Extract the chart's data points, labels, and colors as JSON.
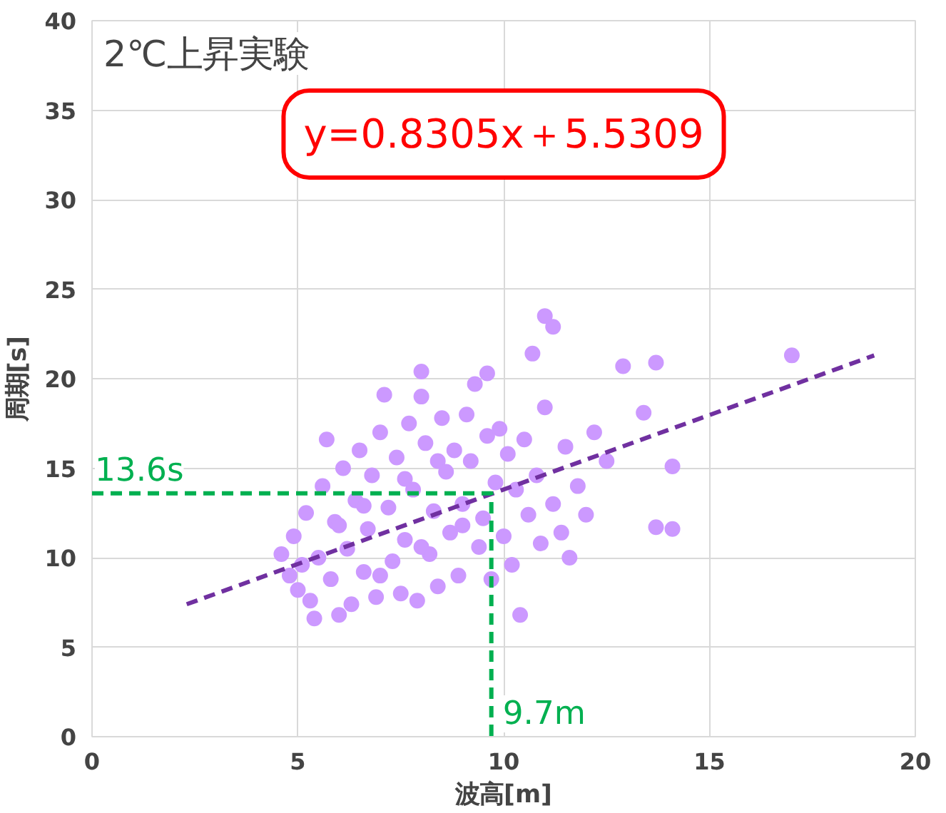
{
  "chart_data": {
    "type": "scatter",
    "title": "2℃上昇実験",
    "xlabel": "波高[m]",
    "ylabel": "周期[s]",
    "xlim": [
      0,
      20
    ],
    "xticks": [
      0,
      5,
      10,
      15,
      20
    ],
    "ylim": [
      0,
      40
    ],
    "yticks": [
      0,
      5,
      10,
      15,
      20,
      25,
      30,
      35,
      40
    ],
    "grid": true,
    "annotations": [
      "y=0.8305x＋5.5309",
      {
        "text": "13.6s",
        "x": 0,
        "y": 13.6
      },
      {
        "text": "9.7m",
        "x": 9.7,
        "y": 0
      }
    ],
    "series": [
      {
        "color": "#cc99ff",
        "marker": "circle",
        "x": [
          4.6,
          4.8,
          4.9,
          5.0,
          5.2,
          5.3,
          5.4,
          5.5,
          5.6,
          5.7,
          5.8,
          5.9,
          6.0,
          6.1,
          6.2,
          6.3,
          6.4,
          6.5,
          6.6,
          6.7,
          6.8,
          6.9,
          7.0,
          7.1,
          7.2,
          7.3,
          7.4,
          7.5,
          7.6,
          7.7,
          7.8,
          7.9,
          8.0,
          8.0,
          8.1,
          8.2,
          8.3,
          8.4,
          8.5,
          8.6,
          8.7,
          8.8,
          8.9,
          9.0,
          9.1,
          9.2,
          9.3,
          9.4,
          9.6,
          9.5,
          9.6,
          9.7,
          9.8,
          9.9,
          10.0,
          10.1,
          10.2,
          10.3,
          10.4,
          10.5,
          10.6,
          10.7,
          10.8,
          10.9,
          11.0,
          11.2,
          11.0,
          11.2,
          11.4,
          11.5,
          11.6,
          11.8,
          12.0,
          12.2,
          12.5,
          12.9,
          13.4,
          13.7,
          13.7,
          14.1,
          14.1,
          17.0,
          5.1,
          6.0,
          7.0,
          8.0,
          9.0,
          6.6,
          7.6,
          8.4
        ],
        "values": [
          10.2,
          9.0,
          11.2,
          8.2,
          12.5,
          7.6,
          6.6,
          10.0,
          14.0,
          16.6,
          8.8,
          12.0,
          6.8,
          15.0,
          10.5,
          7.4,
          13.2,
          16.0,
          9.2,
          11.6,
          14.6,
          7.8,
          17.0,
          19.1,
          12.8,
          9.8,
          15.6,
          8.0,
          11.0,
          17.5,
          13.8,
          7.6,
          20.4,
          19.0,
          16.4,
          10.2,
          12.6,
          8.4,
          17.8,
          14.8,
          11.4,
          16.0,
          9.0,
          13.0,
          18.0,
          15.4,
          19.7,
          10.6,
          20.3,
          12.2,
          16.8,
          8.8,
          14.2,
          17.2,
          11.2,
          15.8,
          9.6,
          13.8,
          6.8,
          16.6,
          12.4,
          21.4,
          14.6,
          10.8,
          23.5,
          22.9,
          18.4,
          13.0,
          11.4,
          16.2,
          10.0,
          14.0,
          12.4,
          17.0,
          15.4,
          20.7,
          18.1,
          20.9,
          11.7,
          11.6,
          15.1,
          21.3,
          9.6,
          11.8,
          9.0,
          10.6,
          11.8,
          12.9,
          14.4,
          15.4
        ]
      },
      {
        "type": "line",
        "color": "#7030a0",
        "line_style": "dashed",
        "x": [
          2.3,
          19
        ],
        "values": [
          7.4,
          21.3
        ]
      },
      {
        "type": "line",
        "color": "#00b050",
        "line_style": "dashed",
        "x": [
          0,
          9.7,
          9.7
        ],
        "values": [
          13.6,
          13.6,
          0
        ]
      }
    ]
  }
}
